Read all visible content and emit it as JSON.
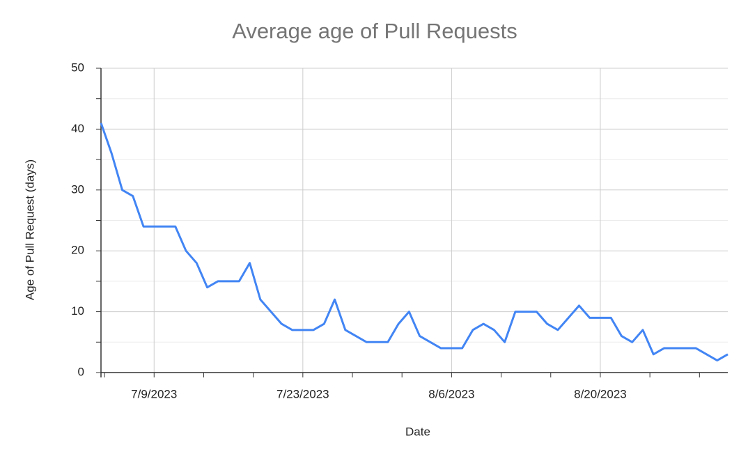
{
  "chart_data": {
    "type": "line",
    "title": "Average age of Pull Requests",
    "x_label": "Date",
    "y_label": "Age of Pull Request (days)",
    "x": [
      "7/4/2023",
      "7/5/2023",
      "7/6/2023",
      "7/7/2023",
      "7/8/2023",
      "7/9/2023",
      "7/10/2023",
      "7/11/2023",
      "7/12/2023",
      "7/13/2023",
      "7/14/2023",
      "7/15/2023",
      "7/16/2023",
      "7/17/2023",
      "7/18/2023",
      "7/19/2023",
      "7/20/2023",
      "7/21/2023",
      "7/22/2023",
      "7/23/2023",
      "7/24/2023",
      "7/25/2023",
      "7/26/2023",
      "7/27/2023",
      "7/28/2023",
      "7/29/2023",
      "7/30/2023",
      "7/31/2023",
      "8/1/2023",
      "8/2/2023",
      "8/3/2023",
      "8/4/2023",
      "8/5/2023",
      "8/6/2023",
      "8/7/2023",
      "8/8/2023",
      "8/9/2023",
      "8/10/2023",
      "8/11/2023",
      "8/12/2023",
      "8/13/2023",
      "8/14/2023",
      "8/15/2023",
      "8/16/2023",
      "8/17/2023",
      "8/18/2023",
      "8/19/2023",
      "8/20/2023",
      "8/21/2023",
      "8/22/2023",
      "8/23/2023",
      "8/24/2023",
      "8/25/2023",
      "8/26/2023",
      "8/27/2023",
      "8/28/2023",
      "8/29/2023",
      "8/30/2023",
      "8/31/2023",
      "9/1/2023"
    ],
    "series": [
      {
        "name": "Age of Pull Request (days)",
        "color": "#4285f4",
        "values": [
          41,
          36,
          30,
          29,
          24,
          24,
          24,
          24,
          20,
          18,
          14,
          15,
          15,
          15,
          18,
          12,
          10,
          8,
          7,
          7,
          7,
          8,
          12,
          7,
          6,
          5,
          5,
          5,
          8,
          10,
          6,
          5,
          4,
          4,
          4,
          7,
          8,
          7,
          5,
          10,
          10,
          10,
          8,
          7,
          9,
          11,
          9,
          9,
          9,
          6,
          5,
          7,
          3,
          4,
          4,
          4,
          4,
          3,
          2,
          3
        ]
      }
    ],
    "xlim": [
      "7/4/2023",
      "9/1/2023"
    ],
    "xticks": [
      "7/9/2023",
      "7/23/2023",
      "8/6/2023",
      "8/20/2023"
    ],
    "ylim": [
      0,
      50
    ],
    "yticks": [
      0,
      10,
      20,
      30,
      40,
      50
    ],
    "grid": true
  }
}
